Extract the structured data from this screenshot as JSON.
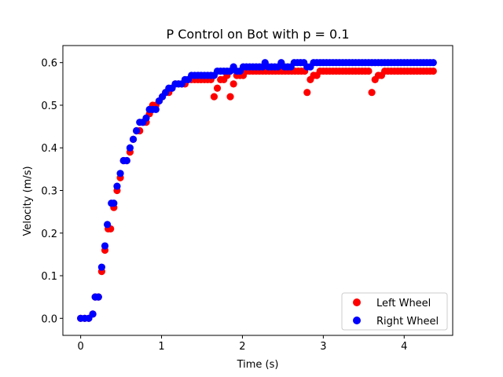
{
  "chart_data": {
    "type": "scatter",
    "title": "P Control on Bot with p = 0.1",
    "xlabel": "Time (s)",
    "ylabel": "Velocity (m/s)",
    "xlim": [
      -0.22,
      4.6
    ],
    "ylim": [
      -0.04,
      0.64
    ],
    "xticks": [
      0,
      1,
      2,
      3,
      4
    ],
    "xtick_labels": [
      "0",
      "1",
      "2",
      "3",
      "4"
    ],
    "yticks": [
      0.0,
      0.1,
      0.2,
      0.3,
      0.4,
      0.5,
      0.6
    ],
    "ytick_labels": [
      "0.0",
      "0.1",
      "0.2",
      "0.3",
      "0.4",
      "0.5",
      "0.6"
    ],
    "grid": false,
    "legend_position": "lower-right",
    "series": [
      {
        "name": "Left Wheel",
        "color": "#ff0000",
        "points": [
          [
            0.0,
            0.0
          ],
          [
            0.05,
            0.0
          ],
          [
            0.1,
            0.0
          ],
          [
            0.15,
            0.01
          ],
          [
            0.18,
            0.05
          ],
          [
            0.22,
            0.05
          ],
          [
            0.26,
            0.11
          ],
          [
            0.3,
            0.16
          ],
          [
            0.34,
            0.21
          ],
          [
            0.37,
            0.21
          ],
          [
            0.41,
            0.26
          ],
          [
            0.45,
            0.3
          ],
          [
            0.49,
            0.33
          ],
          [
            0.53,
            0.37
          ],
          [
            0.57,
            0.37
          ],
          [
            0.61,
            0.39
          ],
          [
            0.65,
            0.42
          ],
          [
            0.69,
            0.44
          ],
          [
            0.73,
            0.44
          ],
          [
            0.77,
            0.46
          ],
          [
            0.81,
            0.46
          ],
          [
            0.85,
            0.48
          ],
          [
            0.89,
            0.5
          ],
          [
            0.93,
            0.5
          ],
          [
            0.97,
            0.51
          ],
          [
            1.01,
            0.52
          ],
          [
            1.05,
            0.53
          ],
          [
            1.09,
            0.53
          ],
          [
            1.13,
            0.54
          ],
          [
            1.17,
            0.55
          ],
          [
            1.21,
            0.55
          ],
          [
            1.25,
            0.55
          ],
          [
            1.29,
            0.55
          ],
          [
            1.33,
            0.56
          ],
          [
            1.37,
            0.56
          ],
          [
            1.41,
            0.56
          ],
          [
            1.45,
            0.56
          ],
          [
            1.49,
            0.56
          ],
          [
            1.53,
            0.56
          ],
          [
            1.57,
            0.56
          ],
          [
            1.61,
            0.56
          ],
          [
            1.65,
            0.52
          ],
          [
            1.69,
            0.54
          ],
          [
            1.73,
            0.56
          ],
          [
            1.77,
            0.56
          ],
          [
            1.81,
            0.57
          ],
          [
            1.85,
            0.52
          ],
          [
            1.89,
            0.55
          ],
          [
            1.93,
            0.57
          ],
          [
            1.97,
            0.57
          ],
          [
            2.01,
            0.57
          ],
          [
            2.05,
            0.58
          ],
          [
            2.09,
            0.58
          ],
          [
            2.13,
            0.58
          ],
          [
            2.17,
            0.58
          ],
          [
            2.21,
            0.58
          ],
          [
            2.25,
            0.58
          ],
          [
            2.29,
            0.58
          ],
          [
            2.33,
            0.58
          ],
          [
            2.37,
            0.58
          ],
          [
            2.41,
            0.58
          ],
          [
            2.45,
            0.58
          ],
          [
            2.49,
            0.58
          ],
          [
            2.53,
            0.58
          ],
          [
            2.57,
            0.58
          ],
          [
            2.61,
            0.58
          ],
          [
            2.65,
            0.58
          ],
          [
            2.69,
            0.58
          ],
          [
            2.73,
            0.58
          ],
          [
            2.77,
            0.58
          ],
          [
            2.8,
            0.53
          ],
          [
            2.84,
            0.56
          ],
          [
            2.88,
            0.57
          ],
          [
            2.92,
            0.57
          ],
          [
            2.96,
            0.58
          ],
          [
            3.0,
            0.58
          ],
          [
            3.04,
            0.58
          ],
          [
            3.08,
            0.58
          ],
          [
            3.12,
            0.58
          ],
          [
            3.16,
            0.58
          ],
          [
            3.2,
            0.58
          ],
          [
            3.24,
            0.58
          ],
          [
            3.28,
            0.58
          ],
          [
            3.32,
            0.58
          ],
          [
            3.36,
            0.58
          ],
          [
            3.4,
            0.58
          ],
          [
            3.44,
            0.58
          ],
          [
            3.48,
            0.58
          ],
          [
            3.52,
            0.58
          ],
          [
            3.56,
            0.58
          ],
          [
            3.6,
            0.53
          ],
          [
            3.64,
            0.56
          ],
          [
            3.68,
            0.57
          ],
          [
            3.72,
            0.57
          ],
          [
            3.76,
            0.58
          ],
          [
            3.8,
            0.58
          ],
          [
            3.84,
            0.58
          ],
          [
            3.88,
            0.58
          ],
          [
            3.92,
            0.58
          ],
          [
            3.96,
            0.58
          ],
          [
            4.0,
            0.58
          ],
          [
            4.04,
            0.58
          ],
          [
            4.08,
            0.58
          ],
          [
            4.12,
            0.58
          ],
          [
            4.16,
            0.58
          ],
          [
            4.2,
            0.58
          ],
          [
            4.24,
            0.58
          ],
          [
            4.28,
            0.58
          ],
          [
            4.32,
            0.58
          ],
          [
            4.36,
            0.58
          ]
        ]
      },
      {
        "name": "Right Wheel",
        "color": "#0000ff",
        "points": [
          [
            0.0,
            0.0
          ],
          [
            0.05,
            0.0
          ],
          [
            0.1,
            0.0
          ],
          [
            0.15,
            0.01
          ],
          [
            0.18,
            0.05
          ],
          [
            0.22,
            0.05
          ],
          [
            0.26,
            0.12
          ],
          [
            0.3,
            0.17
          ],
          [
            0.33,
            0.22
          ],
          [
            0.38,
            0.27
          ],
          [
            0.41,
            0.27
          ],
          [
            0.45,
            0.31
          ],
          [
            0.49,
            0.34
          ],
          [
            0.53,
            0.37
          ],
          [
            0.57,
            0.37
          ],
          [
            0.61,
            0.4
          ],
          [
            0.65,
            0.42
          ],
          [
            0.69,
            0.44
          ],
          [
            0.73,
            0.46
          ],
          [
            0.77,
            0.46
          ],
          [
            0.81,
            0.47
          ],
          [
            0.85,
            0.49
          ],
          [
            0.89,
            0.49
          ],
          [
            0.93,
            0.49
          ],
          [
            0.97,
            0.51
          ],
          [
            1.01,
            0.52
          ],
          [
            1.05,
            0.53
          ],
          [
            1.09,
            0.54
          ],
          [
            1.13,
            0.54
          ],
          [
            1.17,
            0.55
          ],
          [
            1.21,
            0.55
          ],
          [
            1.25,
            0.55
          ],
          [
            1.29,
            0.56
          ],
          [
            1.33,
            0.56
          ],
          [
            1.37,
            0.57
          ],
          [
            1.41,
            0.57
          ],
          [
            1.45,
            0.57
          ],
          [
            1.49,
            0.57
          ],
          [
            1.53,
            0.57
          ],
          [
            1.57,
            0.57
          ],
          [
            1.61,
            0.57
          ],
          [
            1.65,
            0.57
          ],
          [
            1.69,
            0.58
          ],
          [
            1.73,
            0.58
          ],
          [
            1.77,
            0.58
          ],
          [
            1.81,
            0.58
          ],
          [
            1.85,
            0.58
          ],
          [
            1.89,
            0.59
          ],
          [
            1.93,
            0.58
          ],
          [
            1.97,
            0.58
          ],
          [
            2.01,
            0.59
          ],
          [
            2.05,
            0.59
          ],
          [
            2.09,
            0.59
          ],
          [
            2.13,
            0.59
          ],
          [
            2.17,
            0.59
          ],
          [
            2.21,
            0.59
          ],
          [
            2.25,
            0.59
          ],
          [
            2.28,
            0.6
          ],
          [
            2.32,
            0.59
          ],
          [
            2.36,
            0.59
          ],
          [
            2.4,
            0.59
          ],
          [
            2.44,
            0.59
          ],
          [
            2.48,
            0.6
          ],
          [
            2.52,
            0.59
          ],
          [
            2.56,
            0.59
          ],
          [
            2.6,
            0.59
          ],
          [
            2.64,
            0.6
          ],
          [
            2.68,
            0.6
          ],
          [
            2.72,
            0.6
          ],
          [
            2.76,
            0.6
          ],
          [
            2.8,
            0.59
          ],
          [
            2.84,
            0.59
          ],
          [
            2.88,
            0.6
          ],
          [
            2.92,
            0.6
          ],
          [
            2.96,
            0.6
          ],
          [
            3.0,
            0.6
          ],
          [
            3.04,
            0.6
          ],
          [
            3.08,
            0.6
          ],
          [
            3.12,
            0.6
          ],
          [
            3.16,
            0.6
          ],
          [
            3.2,
            0.6
          ],
          [
            3.24,
            0.6
          ],
          [
            3.28,
            0.6
          ],
          [
            3.32,
            0.6
          ],
          [
            3.36,
            0.6
          ],
          [
            3.4,
            0.6
          ],
          [
            3.44,
            0.6
          ],
          [
            3.48,
            0.6
          ],
          [
            3.52,
            0.6
          ],
          [
            3.56,
            0.6
          ],
          [
            3.6,
            0.6
          ],
          [
            3.64,
            0.6
          ],
          [
            3.68,
            0.6
          ],
          [
            3.72,
            0.6
          ],
          [
            3.76,
            0.6
          ],
          [
            3.8,
            0.6
          ],
          [
            3.84,
            0.6
          ],
          [
            3.88,
            0.6
          ],
          [
            3.92,
            0.6
          ],
          [
            3.96,
            0.6
          ],
          [
            4.0,
            0.6
          ],
          [
            4.04,
            0.6
          ],
          [
            4.08,
            0.6
          ],
          [
            4.12,
            0.6
          ],
          [
            4.16,
            0.6
          ],
          [
            4.2,
            0.6
          ],
          [
            4.24,
            0.6
          ],
          [
            4.28,
            0.6
          ],
          [
            4.32,
            0.6
          ],
          [
            4.36,
            0.6
          ]
        ]
      }
    ]
  }
}
